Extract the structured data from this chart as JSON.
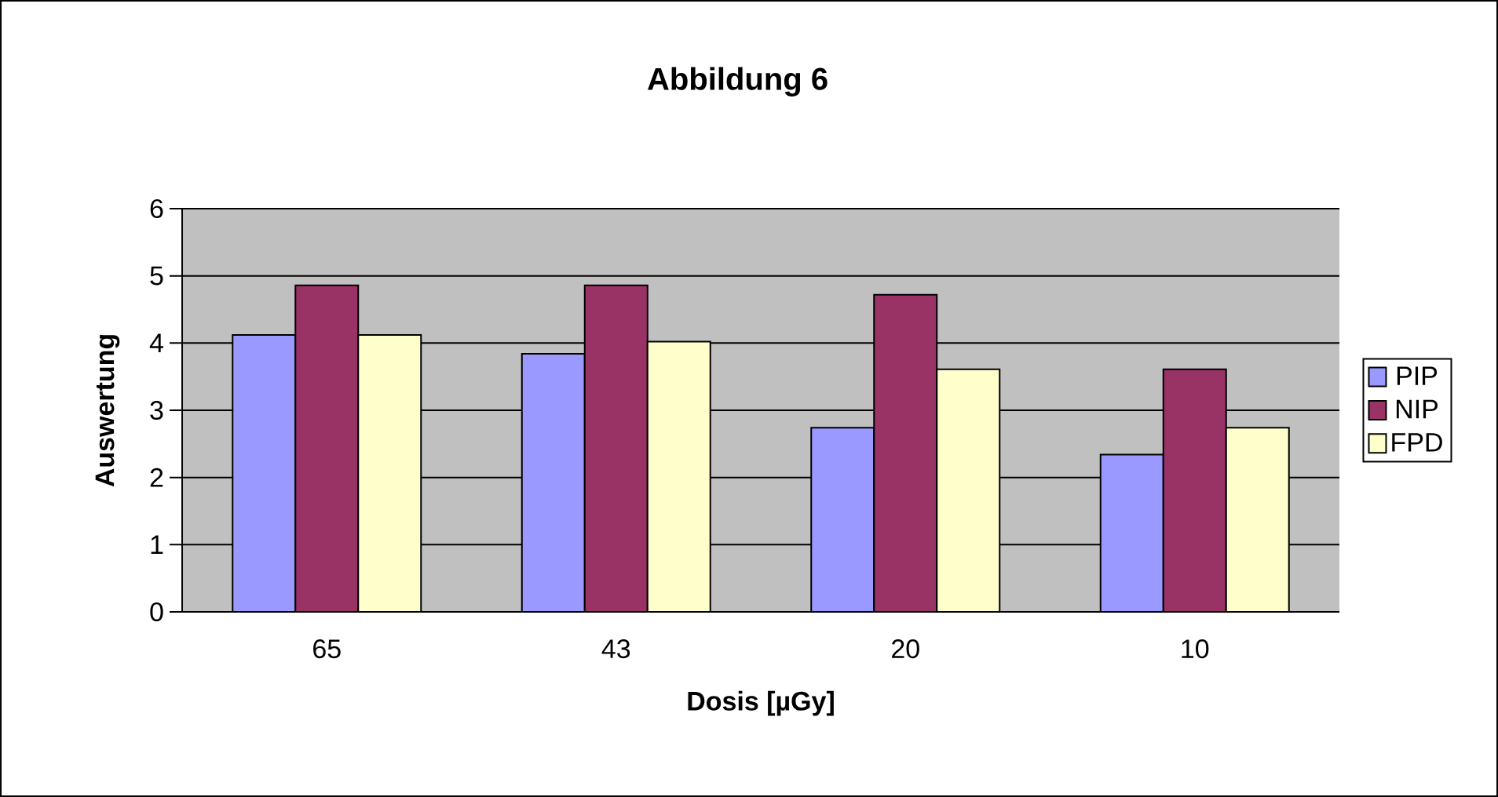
{
  "chart_data": {
    "type": "bar",
    "title": "Abbildung 6",
    "xlabel": "Dosis [µGy]",
    "ylabel": "Auswertung",
    "categories": [
      "65",
      "43",
      "20",
      "10"
    ],
    "series": [
      {
        "name": "PIP",
        "color": "#9999ff",
        "values": [
          4.12,
          3.84,
          2.74,
          2.34
        ]
      },
      {
        "name": "NIP",
        "color": "#993366",
        "values": [
          4.86,
          4.86,
          4.72,
          3.61
        ]
      },
      {
        "name": "FPD",
        "color": "#ffffcc",
        "values": [
          4.12,
          4.02,
          3.61,
          2.74
        ]
      }
    ],
    "ylim": [
      0,
      6
    ],
    "yticks": [
      0,
      1,
      2,
      3,
      4,
      5,
      6
    ],
    "grid": "y",
    "legend": "right"
  }
}
